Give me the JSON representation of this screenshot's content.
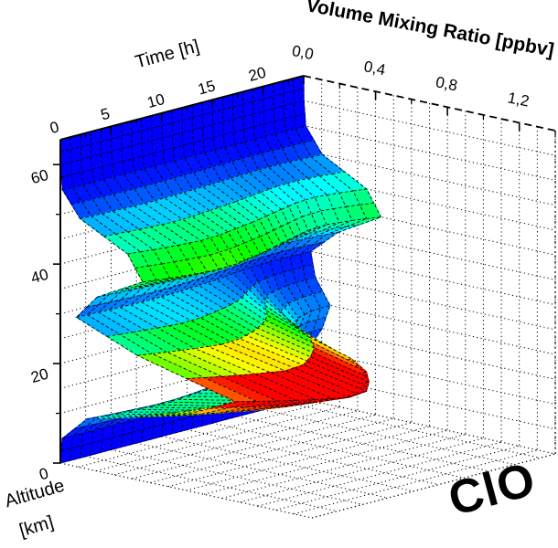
{
  "chart_data": {
    "type": "surface",
    "title": "ClO",
    "xlabel": "Time [h]",
    "ylabel": "Volume Mixing Ratio [ppbv]",
    "zlabel": "Altitude [km]",
    "zlabel_lines": [
      "Altitude",
      "[km]"
    ],
    "x_range_h": [
      0,
      24
    ],
    "y_range_ppbv": [
      0,
      1.4
    ],
    "z_range_km": [
      0,
      65
    ],
    "x_major_ticks": [
      0,
      5,
      10,
      15,
      20
    ],
    "x_major_tick_labels": [
      "0",
      "5",
      "10",
      "15",
      "20"
    ],
    "x_minor_ticks": [
      2.5,
      7.5,
      12.5,
      17.5,
      22.5
    ],
    "y_major_ticks": [
      0,
      0.4,
      0.8,
      1.2
    ],
    "y_major_tick_labels": [
      "0,0",
      "0,4",
      "0,8",
      "1,2"
    ],
    "y_minor_ticks": [
      0.2,
      0.6,
      1.0,
      1.4
    ],
    "z_major_ticks": [
      0,
      20,
      40,
      60
    ],
    "z_major_tick_labels": [
      "0",
      "20",
      "40",
      "60"
    ],
    "z_minor_ticks": [
      10,
      30,
      50
    ],
    "grid": "dotted walls and floor",
    "legend": "none",
    "time_h": [
      0,
      2,
      4,
      6,
      8,
      10,
      12,
      14,
      16,
      18,
      20,
      22,
      24
    ],
    "altitude_km": [
      0,
      5,
      10,
      15,
      20,
      25,
      30,
      35,
      40,
      45,
      50,
      55,
      60,
      65
    ],
    "vmr_ppbv": [
      [
        0,
        0.01,
        0.147,
        0.685,
        0.977,
        0.429,
        0.089,
        0.205,
        0.458,
        0.374,
        0.11,
        0.012,
        0.001,
        0
      ],
      [
        0,
        0.011,
        0.165,
        0.767,
        1.094,
        0.48,
        0.099,
        0.222,
        0.497,
        0.405,
        0.119,
        0.013,
        0.001,
        0
      ],
      [
        0,
        0.012,
        0.179,
        0.836,
        1.192,
        0.523,
        0.106,
        0.235,
        0.525,
        0.428,
        0.126,
        0.013,
        0.001,
        0
      ],
      [
        0,
        0.013,
        0.191,
        0.891,
        1.27,
        0.557,
        0.112,
        0.243,
        0.544,
        0.444,
        0.131,
        0.014,
        0.001,
        0
      ],
      [
        0,
        0.012,
        0.188,
        0.877,
        1.251,
        0.548,
        0.11,
        0.239,
        0.535,
        0.436,
        0.128,
        0.014,
        0.001,
        0
      ],
      [
        0,
        0.011,
        0.173,
        0.808,
        1.153,
        0.504,
        0.103,
        0.226,
        0.506,
        0.413,
        0.121,
        0.013,
        0.001,
        0
      ],
      [
        0,
        0.01,
        0.154,
        0.719,
        1.026,
        0.448,
        0.093,
        0.213,
        0.478,
        0.39,
        0.115,
        0.012,
        0.001,
        0
      ],
      [
        0,
        0.008,
        0.125,
        0.582,
        0.83,
        0.363,
        0.079,
        0.196,
        0.439,
        0.358,
        0.105,
        0.011,
        0.001,
        0
      ],
      [
        0,
        0.005,
        0.081,
        0.377,
        0.537,
        0.235,
        0.059,
        0.179,
        0.401,
        0.327,
        0.096,
        0.01,
        0.001,
        0
      ],
      [
        0,
        0.003,
        0.044,
        0.206,
        0.293,
        0.128,
        0.042,
        0.161,
        0.363,
        0.296,
        0.087,
        0.009,
        0.001,
        0
      ],
      [
        0,
        0.002,
        0.029,
        0.137,
        0.195,
        0.085,
        0.036,
        0.157,
        0.353,
        0.288,
        0.085,
        0.009,
        0.001,
        0
      ],
      [
        0,
        0.002,
        0.024,
        0.11,
        0.156,
        0.068,
        0.036,
        0.169,
        0.382,
        0.312,
        0.092,
        0.01,
        0.001,
        0
      ],
      [
        0,
        0.001,
        0.022,
        0.103,
        0.147,
        0.064,
        0.039,
        0.19,
        0.43,
        0.351,
        0.103,
        0.011,
        0.001,
        0
      ]
    ],
    "colormap": {
      "style": "rainbow",
      "low_color": "#0000ff",
      "mid_color": "#00cc44",
      "high_color": "#ff0000",
      "scale_min_ppbv": 0.02,
      "scale_max_ppbv": 0.94
    },
    "background_color": "#ffffff",
    "axis_color": "#000000"
  }
}
